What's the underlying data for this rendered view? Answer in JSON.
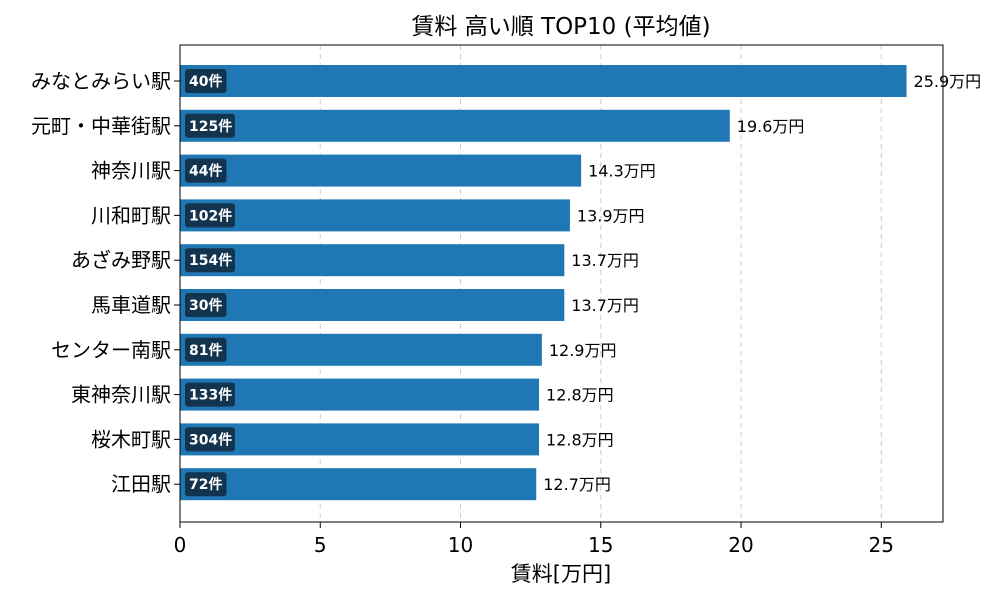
{
  "chart_data": {
    "type": "bar",
    "orientation": "horizontal",
    "title": "賃料 高い順 TOP10 (平均値)",
    "xlabel": "賃料[万円]",
    "ylabel": "",
    "xlim": [
      0,
      27.2
    ],
    "xticks": [
      0,
      5,
      10,
      15,
      20,
      25
    ],
    "grid": "x-dashed",
    "bar_color": "#1f77b4",
    "badge_color": "#13344f",
    "categories": [
      "みなとみらい駅",
      "元町・中華街駅",
      "神奈川駅",
      "川和町駅",
      "あざみ野駅",
      "馬車道駅",
      "センター南駅",
      "東神奈川駅",
      "桜木町駅",
      "江田駅"
    ],
    "values": [
      25.9,
      19.6,
      14.3,
      13.9,
      13.7,
      13.7,
      12.9,
      12.8,
      12.8,
      12.7
    ],
    "value_labels": [
      "25.9万円",
      "19.6万円",
      "14.3万円",
      "13.9万円",
      "13.7万円",
      "13.7万円",
      "12.9万円",
      "12.8万円",
      "12.8万円",
      "12.7万円"
    ],
    "count_labels": [
      "40件",
      "125件",
      "44件",
      "102件",
      "154件",
      "30件",
      "81件",
      "133件",
      "304件",
      "72件"
    ]
  }
}
